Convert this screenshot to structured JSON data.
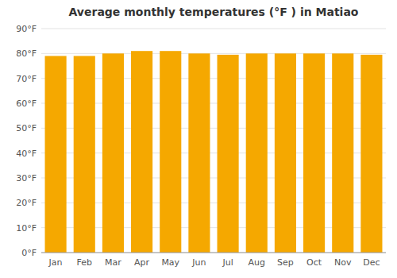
{
  "chart_data": {
    "type": "bar",
    "title": "Average monthly temperatures (°F ) in Matiao",
    "categories": [
      "Jan",
      "Feb",
      "Mar",
      "Apr",
      "May",
      "Jun",
      "Jul",
      "Aug",
      "Sep",
      "Oct",
      "Nov",
      "Dec"
    ],
    "values": [
      79,
      79,
      80,
      81,
      81,
      80,
      79.5,
      80,
      80,
      80,
      80,
      79.5
    ],
    "color": "#F5A800",
    "ylim": [
      0,
      90
    ],
    "yticks": [
      {
        "value": 0,
        "label": "0°F"
      },
      {
        "value": 10,
        "label": "10°F"
      },
      {
        "value": 20,
        "label": "20°F"
      },
      {
        "value": 30,
        "label": "30°F"
      },
      {
        "value": 40,
        "label": "40°F"
      },
      {
        "value": 50,
        "label": "50°F"
      },
      {
        "value": 60,
        "label": "60°F"
      },
      {
        "value": 70,
        "label": "70°F"
      },
      {
        "value": 80,
        "label": "80°F"
      },
      {
        "value": 90,
        "label": "90°F"
      }
    ],
    "grid": true
  }
}
